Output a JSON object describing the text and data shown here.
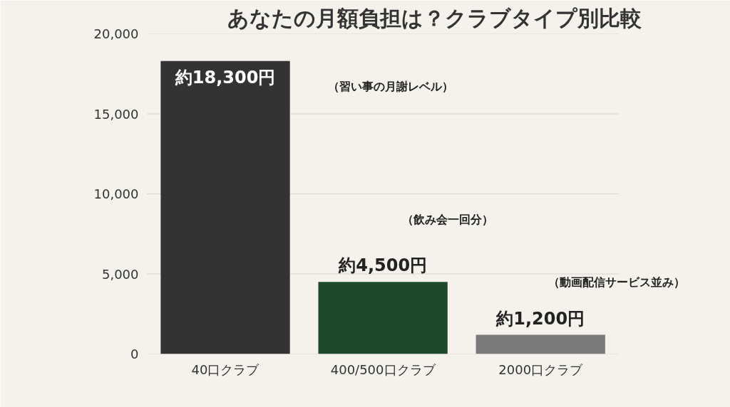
{
  "chart_data": {
    "type": "bar",
    "title": "あなたの月額負担は？クラブタイプ別比較",
    "categories": [
      "40口クラブ",
      "400/500口クラブ",
      "2000口クラブ"
    ],
    "values": [
      18300,
      4500,
      1200
    ],
    "colors": [
      "#333333",
      "#1e4a2a",
      "#7b7b7b"
    ],
    "value_labels": [
      "約18,300円",
      "約4,500円",
      "約1,200円"
    ],
    "annotations": [
      "（習い事の月謝レベル）",
      "（飲み会一回分）",
      "（動画配信サービス並み）"
    ],
    "ylim": [
      0,
      20000
    ],
    "yticks": [
      0,
      {
        "value": 5000,
        "label": "5,000"
      },
      {
        "value": 10000,
        "label": "10,000"
      },
      {
        "value": 15000,
        "label": "15,000"
      },
      {
        "value": 20000,
        "label": "20,000"
      }
    ],
    "grid": "y"
  }
}
